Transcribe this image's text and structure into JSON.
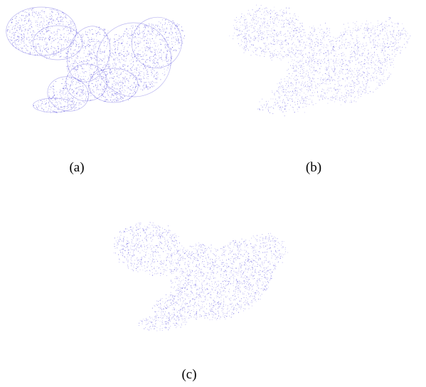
{
  "figure": {
    "panels": [
      {
        "id": "a",
        "caption": "(a)"
      },
      {
        "id": "b",
        "caption": "(b)"
      },
      {
        "id": "c",
        "caption": "(c)"
      }
    ],
    "colors": {
      "point_dark": "#3a2fd6",
      "point_light": "#8f86ee",
      "background": "#ffffff"
    }
  }
}
